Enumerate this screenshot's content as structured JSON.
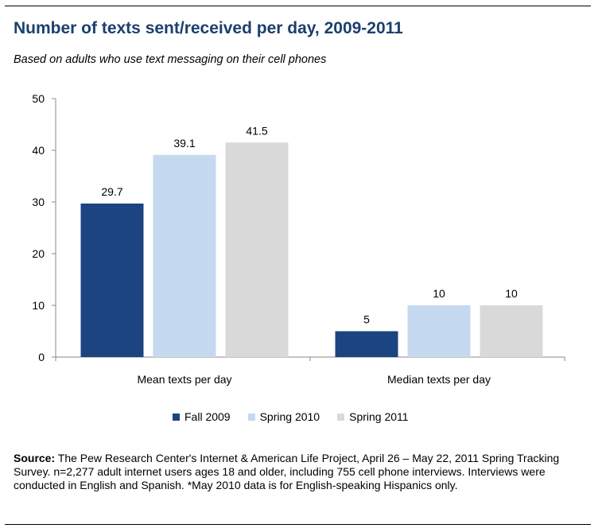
{
  "header": {
    "title": "Number of texts sent/received per day, 2009-2011",
    "subtitle": "Based on adults who use text messaging on their cell phones"
  },
  "chart_data": {
    "type": "bar",
    "title": "Number of texts sent/received per day, 2009-2011",
    "subtitle": "Based on adults who use text messaging on their cell phones",
    "categories": [
      "Mean texts per day",
      "Median texts per day"
    ],
    "series": [
      {
        "name": "Fall 2009",
        "values": [
          29.7,
          5
        ],
        "labels": [
          "29.7",
          "5"
        ],
        "color": "#1b4480"
      },
      {
        "name": "Spring 2010",
        "values": [
          39.1,
          10
        ],
        "labels": [
          "39.1",
          "10"
        ],
        "color": "#c5d9f1"
      },
      {
        "name": "Spring 2011",
        "values": [
          41.5,
          10
        ],
        "labels": [
          "41.5",
          "10"
        ],
        "color": "#d9d9d9"
      }
    ],
    "y_ticks": [
      "0",
      "10",
      "20",
      "30",
      "40",
      "50"
    ],
    "ylim": [
      0,
      50
    ],
    "grid": false,
    "legend_position": "bottom"
  },
  "footer": {
    "source_label": "Source:",
    "source_text": " The Pew Research Center's Internet & American Life Project, April 26 – May 22, 2011 Spring Tracking Survey. n=2,277 adult internet users ages 18 and older, including 755 cell phone interviews. Interviews were conducted in English and Spanish. *May 2010 data is for English-speaking Hispanics only."
  }
}
